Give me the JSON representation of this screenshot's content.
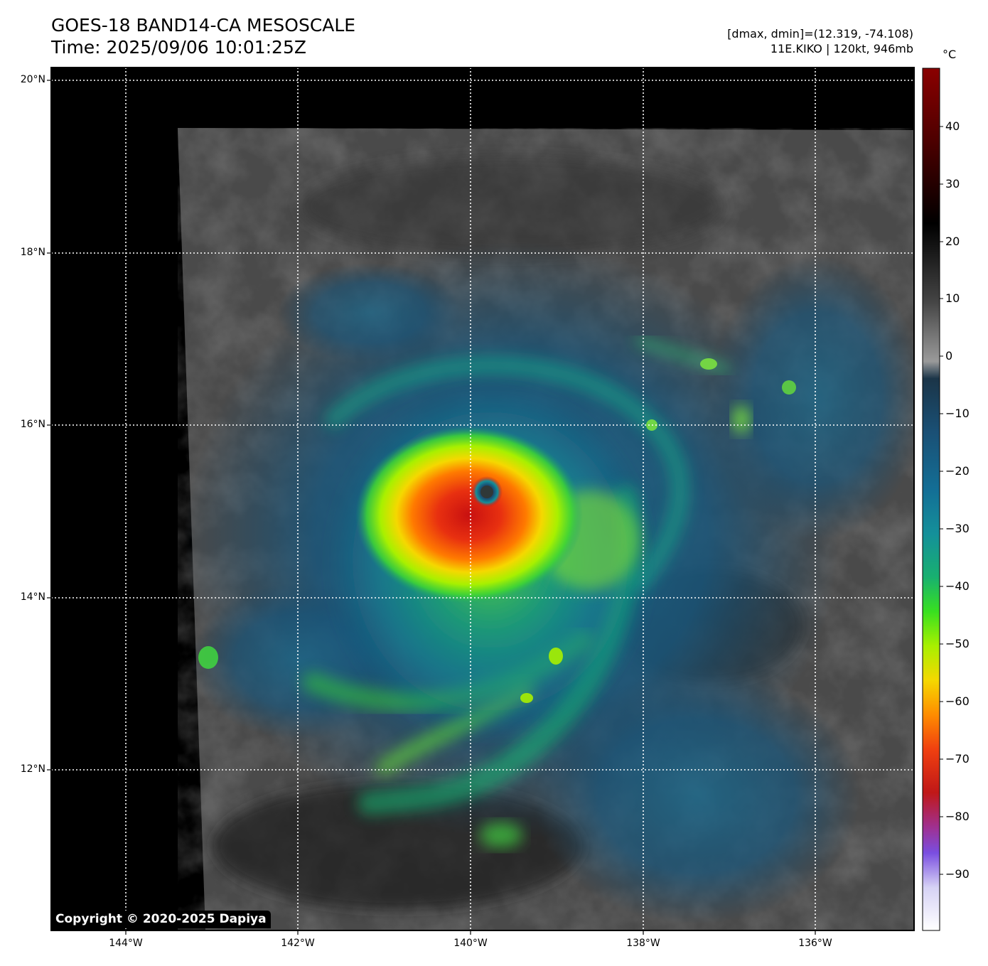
{
  "header": {
    "title_line1": "GOES-18 BAND14-CA MESOSCALE",
    "title_line2": "Time: 2025/09/06 10:01:25Z",
    "info_line1": "[dmax, dmin]=(12.319, -74.108)",
    "info_line2": "11E.KIKO | 120kt, 946mb"
  },
  "map": {
    "lat_labels": [
      "20°N",
      "18°N",
      "16°N",
      "14°N",
      "12°N"
    ],
    "lon_labels": [
      "144°W",
      "142°W",
      "140°W",
      "138°W",
      "136°W"
    ],
    "gridlines": "dotted",
    "storm_center": {
      "lat": 15.3,
      "lon": -139.8
    }
  },
  "colorbar": {
    "unit": "°C",
    "tick_labels": [
      "40",
      "30",
      "20",
      "10",
      "0",
      "−10",
      "−20",
      "−30",
      "−40",
      "−50",
      "−60",
      "−70",
      "−80",
      "−90"
    ],
    "range": [
      -100,
      50
    ],
    "colors": [
      "#ffffff",
      "#b9b4f0",
      "#7a4ee0",
      "#b0287a",
      "#b81818",
      "#f03010",
      "#ff7a00",
      "#f5d800",
      "#b8f000",
      "#38e020",
      "#18b070",
      "#158f98",
      "#126e95",
      "#1a4f74",
      "#183040",
      "#8a8a8a",
      "#3c3c3c",
      "#000000",
      "#6e0000",
      "#8a0000"
    ]
  },
  "copyright": "Copyright © 2020-2025 Dapiya"
}
